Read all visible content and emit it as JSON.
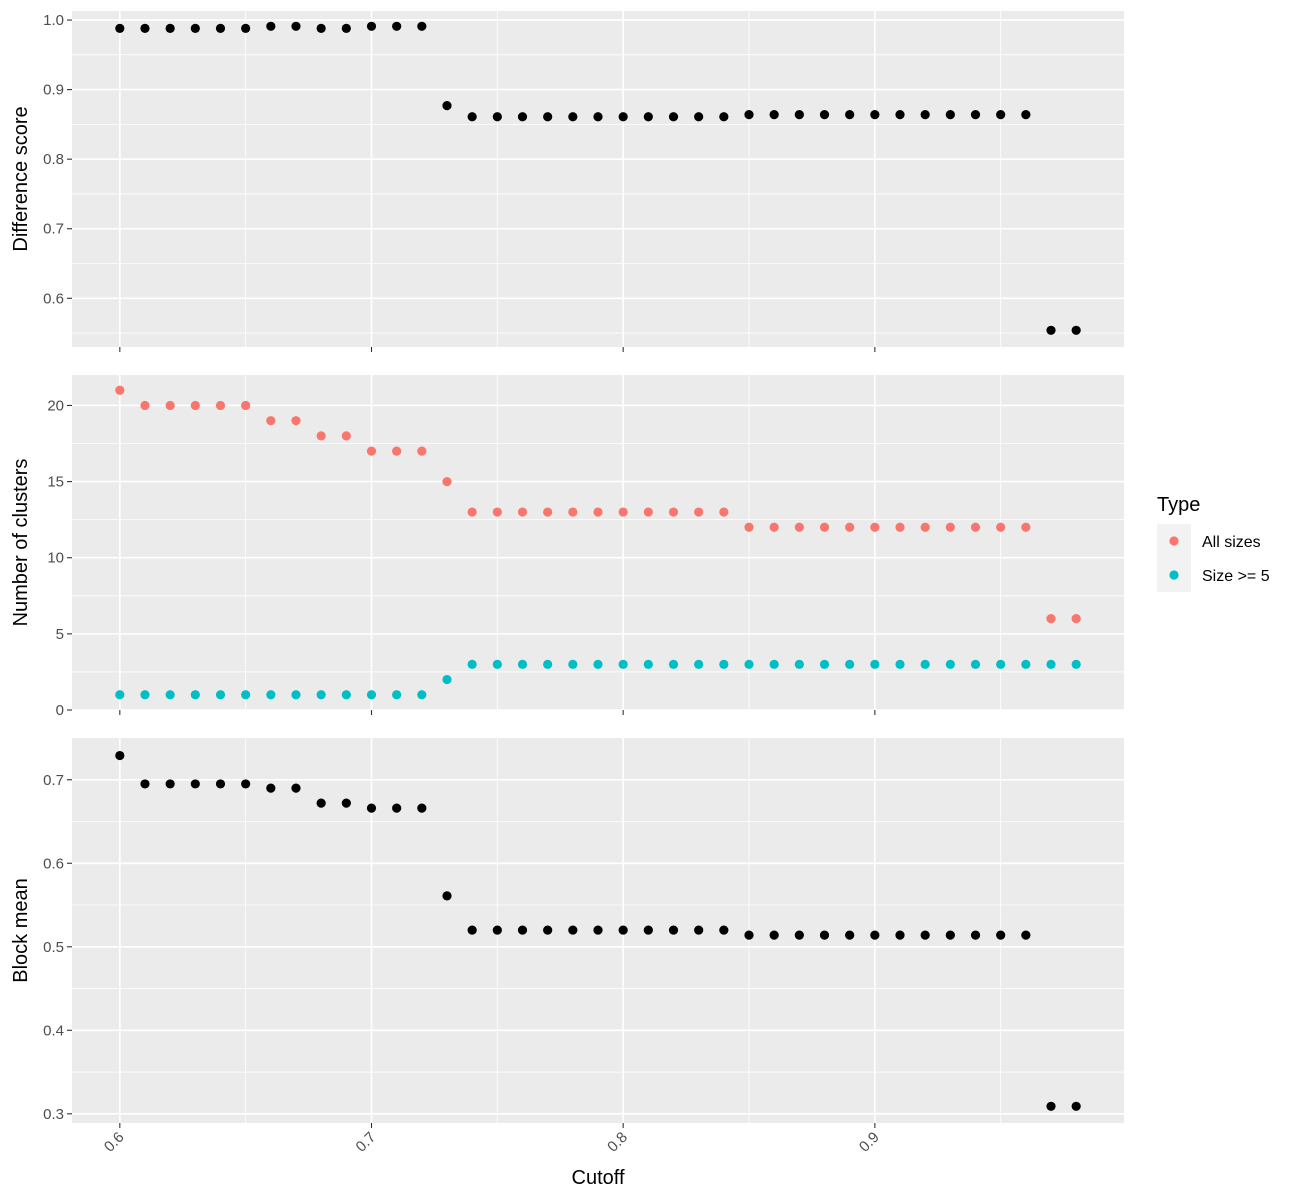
{
  "chart_data": [
    {
      "type": "scatter",
      "facet": "top",
      "ylabel": "Difference score",
      "ylim": [
        0.53,
        1.013
      ],
      "y_ticks": [
        0.6,
        0.7,
        0.8,
        0.9,
        1.0
      ],
      "y_tick_labels": [
        "0.6",
        "0.7",
        "0.8",
        "0.9",
        "1.0"
      ],
      "x": [
        0.6,
        0.61,
        0.62,
        0.63,
        0.64,
        0.65,
        0.66,
        0.67,
        0.68,
        0.69,
        0.7,
        0.71,
        0.72,
        0.73,
        0.74,
        0.75,
        0.76,
        0.77,
        0.78,
        0.79,
        0.8,
        0.81,
        0.82,
        0.83,
        0.84,
        0.85,
        0.86,
        0.87,
        0.88,
        0.89,
        0.9,
        0.91,
        0.92,
        0.93,
        0.94,
        0.95,
        0.96,
        0.97,
        0.98
      ],
      "series": [
        {
          "color": "#000000",
          "values": [
            0.988,
            0.988,
            0.988,
            0.988,
            0.988,
            0.988,
            0.991,
            0.991,
            0.988,
            0.988,
            0.991,
            0.991,
            0.991,
            0.877,
            0.861,
            0.861,
            0.861,
            0.861,
            0.861,
            0.861,
            0.861,
            0.861,
            0.861,
            0.861,
            0.861,
            0.864,
            0.864,
            0.864,
            0.864,
            0.864,
            0.864,
            0.864,
            0.864,
            0.864,
            0.864,
            0.864,
            0.864,
            0.554,
            0.554
          ]
        }
      ]
    },
    {
      "type": "scatter",
      "facet": "middle",
      "ylabel": "Number of clusters",
      "ylim": [
        0,
        22
      ],
      "y_ticks": [
        0,
        5,
        10,
        15,
        20
      ],
      "y_tick_labels": [
        "0",
        "5",
        "10",
        "15",
        "20"
      ],
      "x": [
        0.6,
        0.61,
        0.62,
        0.63,
        0.64,
        0.65,
        0.66,
        0.67,
        0.68,
        0.69,
        0.7,
        0.71,
        0.72,
        0.73,
        0.74,
        0.75,
        0.76,
        0.77,
        0.78,
        0.79,
        0.8,
        0.81,
        0.82,
        0.83,
        0.84,
        0.85,
        0.86,
        0.87,
        0.88,
        0.89,
        0.9,
        0.91,
        0.92,
        0.93,
        0.94,
        0.95,
        0.96,
        0.97,
        0.98
      ],
      "series": [
        {
          "name": "All sizes",
          "color": "#F8766D",
          "values": [
            21,
            20,
            20,
            20,
            20,
            20,
            19,
            19,
            18,
            18,
            17,
            17,
            17,
            15,
            13,
            13,
            13,
            13,
            13,
            13,
            13,
            13,
            13,
            13,
            13,
            12,
            12,
            12,
            12,
            12,
            12,
            12,
            12,
            12,
            12,
            12,
            12,
            6,
            6
          ]
        },
        {
          "name": "Size >= 5",
          "color": "#00BFC4",
          "values": [
            1,
            1,
            1,
            1,
            1,
            1,
            1,
            1,
            1,
            1,
            1,
            1,
            1,
            2,
            3,
            3,
            3,
            3,
            3,
            3,
            3,
            3,
            3,
            3,
            3,
            3,
            3,
            3,
            3,
            3,
            3,
            3,
            3,
            3,
            3,
            3,
            3,
            3,
            3
          ]
        }
      ]
    },
    {
      "type": "scatter",
      "facet": "bottom",
      "ylabel": "Block mean",
      "ylim": [
        0.289,
        0.75
      ],
      "y_ticks": [
        0.3,
        0.4,
        0.5,
        0.6,
        0.7
      ],
      "y_tick_labels": [
        "0.3",
        "0.4",
        "0.5",
        "0.6",
        "0.7"
      ],
      "x": [
        0.6,
        0.61,
        0.62,
        0.63,
        0.64,
        0.65,
        0.66,
        0.67,
        0.68,
        0.69,
        0.7,
        0.71,
        0.72,
        0.73,
        0.74,
        0.75,
        0.76,
        0.77,
        0.78,
        0.79,
        0.8,
        0.81,
        0.82,
        0.83,
        0.84,
        0.85,
        0.86,
        0.87,
        0.88,
        0.89,
        0.9,
        0.91,
        0.92,
        0.93,
        0.94,
        0.95,
        0.96,
        0.97,
        0.98
      ],
      "series": [
        {
          "color": "#000000",
          "values": [
            0.729,
            0.695,
            0.695,
            0.695,
            0.695,
            0.695,
            0.69,
            0.69,
            0.672,
            0.672,
            0.666,
            0.666,
            0.666,
            0.561,
            0.52,
            0.52,
            0.52,
            0.52,
            0.52,
            0.52,
            0.52,
            0.52,
            0.52,
            0.52,
            0.52,
            0.514,
            0.514,
            0.514,
            0.514,
            0.514,
            0.514,
            0.514,
            0.514,
            0.514,
            0.514,
            0.514,
            0.514,
            0.309,
            0.309
          ]
        }
      ]
    }
  ],
  "shared_x": {
    "label": "Cutoff",
    "xlim": [
      0.581,
      0.999
    ],
    "ticks": [
      0.6,
      0.7,
      0.8,
      0.9
    ],
    "tick_labels": [
      "0.6",
      "0.7",
      "0.8",
      "0.9"
    ],
    "tick_label_rotation_deg": -45
  },
  "legend": {
    "title": "Type",
    "placement": "right",
    "entries": [
      {
        "label": "All sizes",
        "color": "#F8766D"
      },
      {
        "label": "Size >= 5",
        "color": "#00BFC4"
      }
    ]
  },
  "colors": {
    "panel_background": "#ebebeb",
    "grid": "#ffffff",
    "points_default": "#000000"
  }
}
